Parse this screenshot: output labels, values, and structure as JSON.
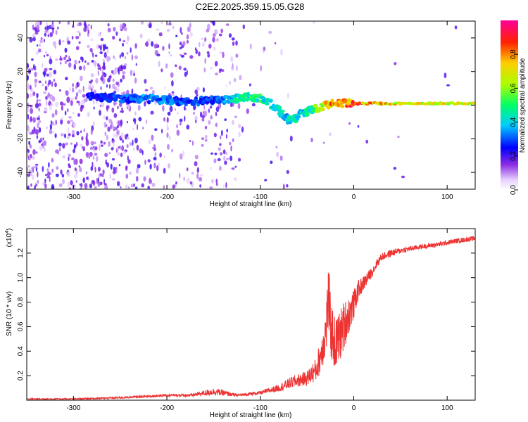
{
  "title": "C2E2.2025.359.15.05.G28",
  "chart_data": [
    {
      "type": "heatmap",
      "name": "spectrogram",
      "xlabel": "Height of straight line (km)",
      "ylabel": "Frequency (Hz)",
      "xlim": [
        -350,
        130
      ],
      "ylim": [
        -50,
        50
      ],
      "xticks": [
        -300,
        -200,
        -100,
        0,
        100
      ],
      "xtick_labels": [
        "-300",
        "-200",
        "-100",
        "0",
        "100"
      ],
      "yticks": [
        -40,
        -20,
        0,
        20,
        40
      ],
      "ytick_labels": [
        "-40",
        "-20",
        "0",
        "20",
        "40"
      ],
      "ridge": {
        "heights": [
          -280,
          -250,
          -225,
          -200,
          -175,
          -150,
          -125,
          -110,
          -100,
          -90,
          -80,
          -72,
          -65,
          -58,
          -50,
          -40,
          -30,
          -20,
          -10,
          0,
          20,
          50,
          80,
          110,
          130
        ],
        "frequency": [
          5,
          4,
          4,
          3,
          2,
          3,
          4,
          5,
          4,
          1,
          -3,
          -8,
          -10,
          -6,
          -4,
          -2,
          0,
          1,
          1,
          1,
          1,
          1,
          1,
          1,
          1
        ],
        "amplitude": [
          0.25,
          0.3,
          0.35,
          0.35,
          0.3,
          0.3,
          0.45,
          0.5,
          0.5,
          0.45,
          0.45,
          0.4,
          0.45,
          0.4,
          0.45,
          0.6,
          0.75,
          0.85,
          0.85,
          0.95,
          0.8,
          0.75,
          0.7,
          0.75,
          0.7
        ]
      },
      "noise_level": 0.05
    },
    {
      "type": "colorbar",
      "name": "amplitude-colorbar",
      "label": "Normalized spectral amplitude",
      "range": [
        0,
        1
      ],
      "ticks": [
        0.0,
        0.2,
        0.4,
        0.6,
        0.8
      ],
      "tick_labels": [
        "0.0",
        "0.2",
        "0.4",
        "0.6",
        "0.8"
      ]
    },
    {
      "type": "line",
      "name": "snr",
      "xlabel": "Height of straight line (km)",
      "ylabel": "SNR (10 * v/v)",
      "exponent_label": "(x10",
      "exponent_sup": "4",
      "exponent_close": ")",
      "xlim": [
        -350,
        130
      ],
      "ylim": [
        0,
        1.4
      ],
      "xticks": [
        -300,
        -200,
        -100,
        0,
        100
      ],
      "xtick_labels": [
        "-300",
        "-200",
        "-100",
        "0",
        "100"
      ],
      "yticks": [
        0.2,
        0.4,
        0.6,
        0.8,
        1.0,
        1.2
      ],
      "ytick_labels": [
        "0.2",
        "0.4",
        "0.6",
        "0.8",
        "1.0",
        "1.2"
      ],
      "color": "#ee3333",
      "series": {
        "x": [
          -350,
          -300,
          -250,
          -200,
          -175,
          -150,
          -140,
          -125,
          -100,
          -80,
          -65,
          -50,
          -40,
          -35,
          -30,
          -27,
          -25,
          -20,
          -15,
          -10,
          -5,
          0,
          5,
          10,
          15,
          20,
          25,
          30,
          40,
          50,
          70,
          90,
          110,
          130
        ],
        "y": [
          0.01,
          0.01,
          0.02,
          0.04,
          0.04,
          0.07,
          0.06,
          0.04,
          0.06,
          0.1,
          0.15,
          0.18,
          0.25,
          0.38,
          0.55,
          0.85,
          0.6,
          0.45,
          0.52,
          0.62,
          0.7,
          0.78,
          0.9,
          0.95,
          1.0,
          1.05,
          1.12,
          1.17,
          1.2,
          1.22,
          1.25,
          1.27,
          1.3,
          1.32
        ],
        "noise": [
          0.005,
          0.005,
          0.008,
          0.01,
          0.012,
          0.03,
          0.025,
          0.01,
          0.015,
          0.03,
          0.05,
          0.06,
          0.1,
          0.15,
          0.2,
          0.3,
          0.25,
          0.22,
          0.22,
          0.2,
          0.15,
          0.12,
          0.08,
          0.06,
          0.05,
          0.04,
          0.035,
          0.03,
          0.03,
          0.025,
          0.02,
          0.02,
          0.02,
          0.02
        ]
      }
    }
  ]
}
